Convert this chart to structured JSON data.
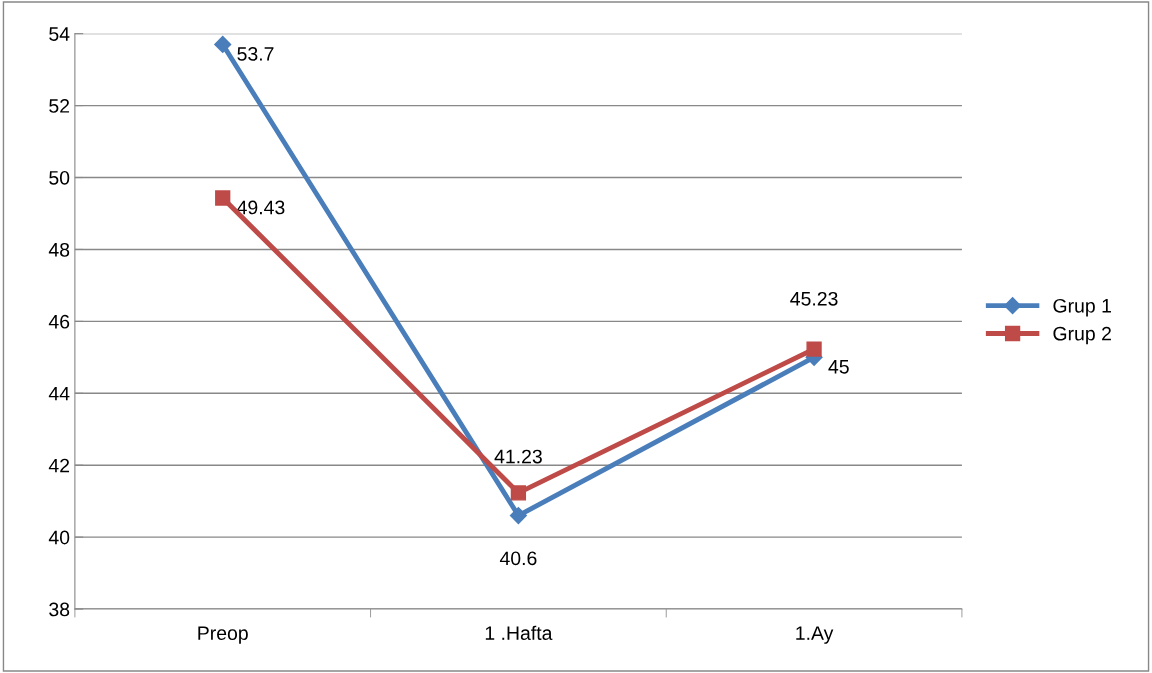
{
  "chart_data": {
    "type": "line",
    "categories": [
      "Preop",
      "1 .Hafta",
      "1.Ay"
    ],
    "series": [
      {
        "name": "Grup 1",
        "color": "#4a7ebb",
        "marker": "diamond",
        "values": [
          53.7,
          40.6,
          45
        ]
      },
      {
        "name": "Grup 2",
        "color": "#be4b48",
        "marker": "square",
        "values": [
          49.43,
          41.23,
          45.23
        ]
      }
    ],
    "ylim": [
      38,
      54
    ],
    "yticks": [
      38,
      40,
      42,
      44,
      46,
      48,
      50,
      52,
      54
    ],
    "grid": "y",
    "legend": "right",
    "data_labels": true,
    "line_style": "solid"
  }
}
